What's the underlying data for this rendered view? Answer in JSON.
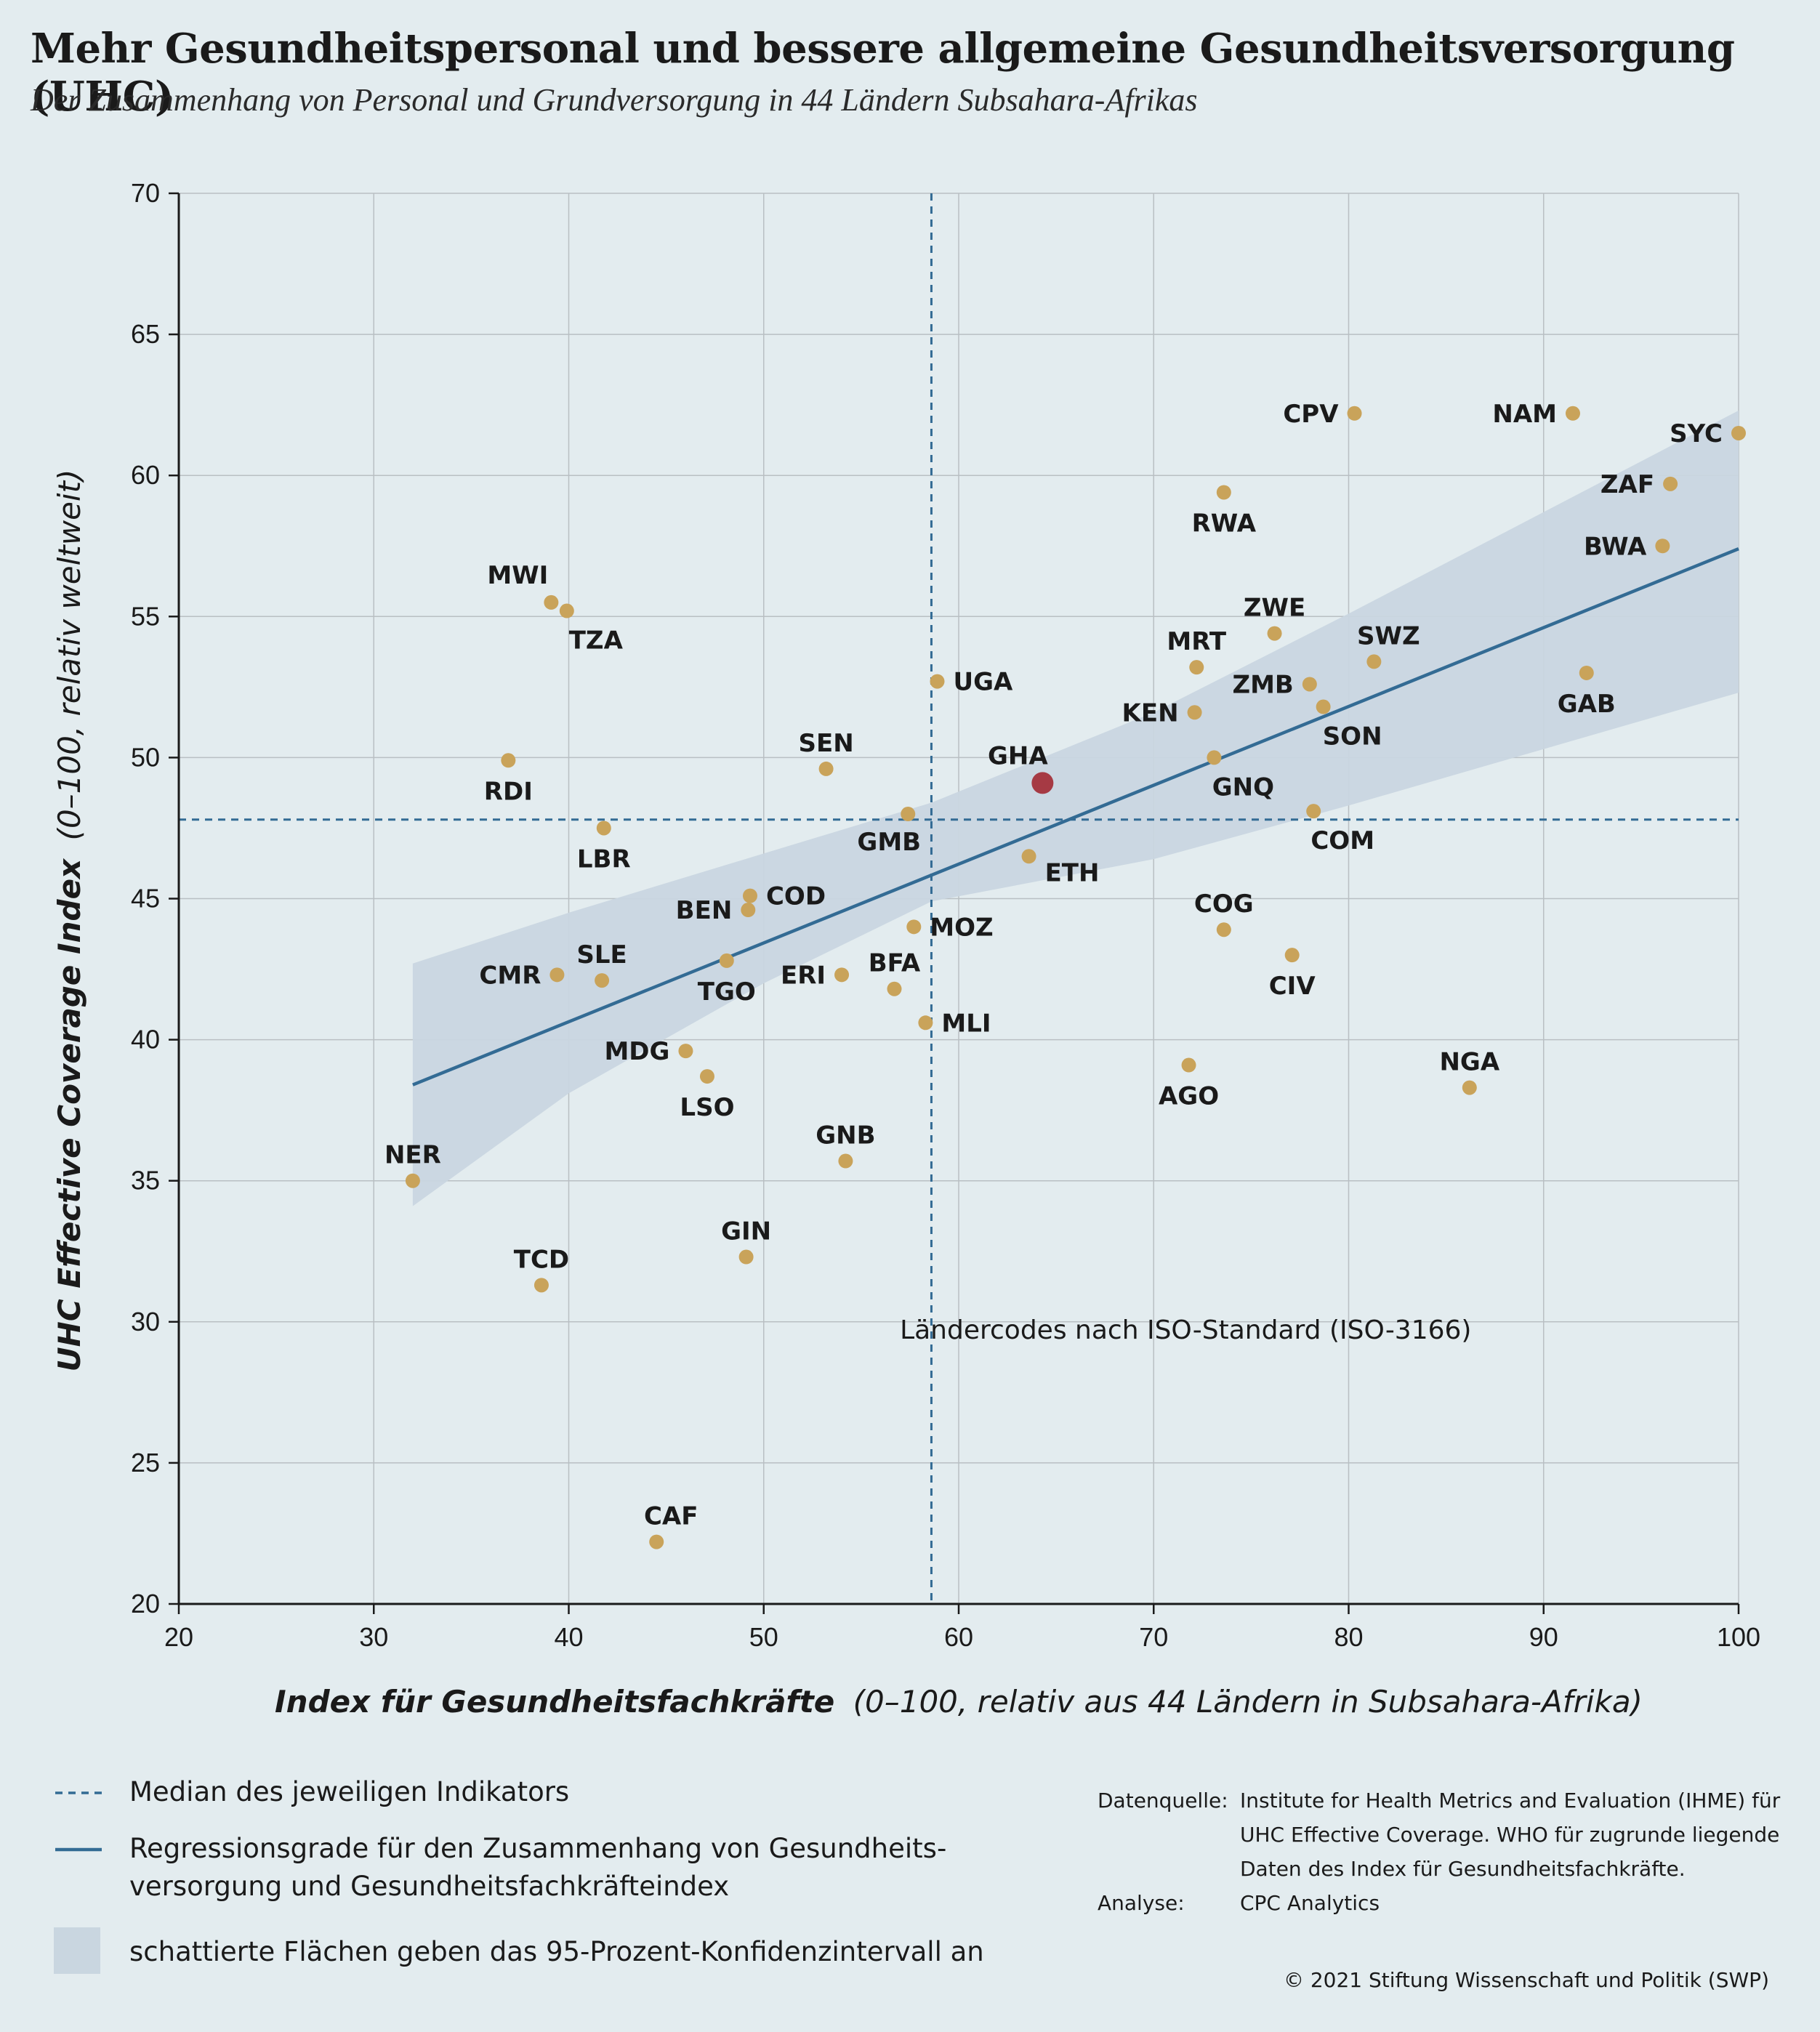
{
  "title": "Mehr Gesundheitspersonal und bessere allgemeine Gesundheitsversorgung (UHC)",
  "subtitle": "Der Zusammenhang von Personal und Grundversorgung in 44 Ländern Subsahara-Afrikas",
  "colors": {
    "background": "#e3ecef",
    "point": "#c9a35a",
    "highlight": "#a63a44",
    "regression": "#336b94",
    "confidence_band": "#c9d6e0",
    "median": "#336b94",
    "grid": "#b9bfc3"
  },
  "chart_data": {
    "type": "scatter",
    "xlabel_bold": "Index für Gesundheitsfachkräfte",
    "xlabel_rest": "(0–100, relativ aus 44 Ländern in Subsahara-Afrika)",
    "ylabel_bold": "UHC Effective Coverage Index",
    "ylabel_rest": "(0–100, relativ weltweit)",
    "xlim": [
      20,
      100
    ],
    "ylim": [
      20,
      70
    ],
    "xticks": [
      20,
      30,
      40,
      50,
      60,
      70,
      80,
      90,
      100
    ],
    "yticks": [
      20,
      25,
      30,
      35,
      40,
      45,
      50,
      55,
      60,
      65,
      70
    ],
    "grid": true,
    "median_x": 58.6,
    "median_y": 47.8,
    "regression": {
      "x": [
        32,
        100
      ],
      "y": [
        38.4,
        57.4
      ]
    },
    "confidence_band": {
      "upper": [
        [
          32,
          42.7
        ],
        [
          40,
          44.5
        ],
        [
          50,
          46.6
        ],
        [
          58.6,
          48.4
        ],
        [
          70,
          51.6
        ],
        [
          80,
          55.1
        ],
        [
          90,
          58.7
        ],
        [
          100,
          62.3
        ]
      ],
      "lower": [
        [
          32,
          34.1
        ],
        [
          40,
          38.1
        ],
        [
          50,
          42.0
        ],
        [
          58.6,
          44.9
        ],
        [
          70,
          46.4
        ],
        [
          80,
          48.3
        ],
        [
          90,
          50.3
        ],
        [
          100,
          52.3
        ]
      ]
    },
    "note": "Ländercodes nach ISO-Standard (ISO-3166)",
    "highlighted": "GHA",
    "points": [
      {
        "code": "SYC",
        "x": 100.0,
        "y": 61.5,
        "pos": "left"
      },
      {
        "code": "NAM",
        "x": 91.5,
        "y": 62.2,
        "pos": "left"
      },
      {
        "code": "CPV",
        "x": 80.3,
        "y": 62.2,
        "pos": "left"
      },
      {
        "code": "ZAF",
        "x": 96.5,
        "y": 59.7,
        "pos": "left"
      },
      {
        "code": "RWA",
        "x": 73.6,
        "y": 59.4,
        "pos": "below"
      },
      {
        "code": "BWA",
        "x": 96.1,
        "y": 57.5,
        "pos": "left"
      },
      {
        "code": "MWI",
        "x": 39.1,
        "y": 55.5,
        "pos": "left-above"
      },
      {
        "code": "TZA",
        "x": 39.9,
        "y": 55.2,
        "pos": "below-right"
      },
      {
        "code": "ZWE",
        "x": 76.2,
        "y": 54.4,
        "pos": "above"
      },
      {
        "code": "SWZ",
        "x": 81.3,
        "y": 53.4,
        "pos": "above-right"
      },
      {
        "code": "MRT",
        "x": 72.2,
        "y": 53.2,
        "pos": "above"
      },
      {
        "code": "GAB",
        "x": 92.2,
        "y": 53.0,
        "pos": "below"
      },
      {
        "code": "UGA",
        "x": 58.9,
        "y": 52.7,
        "pos": "right"
      },
      {
        "code": "ZMB",
        "x": 78.0,
        "y": 52.6,
        "pos": "left"
      },
      {
        "code": "SON",
        "x": 78.7,
        "y": 51.8,
        "pos": "below-right"
      },
      {
        "code": "KEN",
        "x": 72.1,
        "y": 51.6,
        "pos": "left"
      },
      {
        "code": "GNQ",
        "x": 73.1,
        "y": 50.0,
        "pos": "below-right"
      },
      {
        "code": "RDI",
        "x": 36.9,
        "y": 49.9,
        "pos": "below"
      },
      {
        "code": "SEN",
        "x": 53.2,
        "y": 49.6,
        "pos": "above"
      },
      {
        "code": "GHA",
        "x": 64.3,
        "y": 49.1,
        "pos": "above-left"
      },
      {
        "code": "COM",
        "x": 78.2,
        "y": 48.1,
        "pos": "below-right"
      },
      {
        "code": "GMB",
        "x": 57.4,
        "y": 48.0,
        "pos": "below-left"
      },
      {
        "code": "LBR",
        "x": 41.8,
        "y": 47.5,
        "pos": "below"
      },
      {
        "code": "ETH",
        "x": 63.6,
        "y": 46.5,
        "pos": "right-below"
      },
      {
        "code": "COD",
        "x": 49.3,
        "y": 45.1,
        "pos": "right"
      },
      {
        "code": "BEN",
        "x": 49.2,
        "y": 44.6,
        "pos": "left"
      },
      {
        "code": "MOZ",
        "x": 57.7,
        "y": 44.0,
        "pos": "right"
      },
      {
        "code": "COG",
        "x": 73.6,
        "y": 43.9,
        "pos": "above"
      },
      {
        "code": "CIV",
        "x": 77.1,
        "y": 43.0,
        "pos": "below"
      },
      {
        "code": "TGO",
        "x": 48.1,
        "y": 42.8,
        "pos": "below"
      },
      {
        "code": "CMR",
        "x": 39.4,
        "y": 42.3,
        "pos": "left"
      },
      {
        "code": "ERI",
        "x": 54.0,
        "y": 42.3,
        "pos": "left"
      },
      {
        "code": "SLE",
        "x": 41.7,
        "y": 42.1,
        "pos": "above"
      },
      {
        "code": "BFA",
        "x": 56.7,
        "y": 41.8,
        "pos": "above"
      },
      {
        "code": "MLI",
        "x": 58.3,
        "y": 40.6,
        "pos": "right"
      },
      {
        "code": "MDG",
        "x": 46.0,
        "y": 39.6,
        "pos": "left"
      },
      {
        "code": "AGO",
        "x": 71.8,
        "y": 39.1,
        "pos": "below"
      },
      {
        "code": "LSO",
        "x": 47.1,
        "y": 38.7,
        "pos": "below"
      },
      {
        "code": "NGA",
        "x": 86.2,
        "y": 38.3,
        "pos": "above"
      },
      {
        "code": "GNB",
        "x": 54.2,
        "y": 35.7,
        "pos": "above"
      },
      {
        "code": "NER",
        "x": 32.0,
        "y": 35.0,
        "pos": "above"
      },
      {
        "code": "GIN",
        "x": 49.1,
        "y": 32.3,
        "pos": "above"
      },
      {
        "code": "TCD",
        "x": 38.6,
        "y": 31.3,
        "pos": "above"
      },
      {
        "code": "CAF",
        "x": 44.5,
        "y": 22.2,
        "pos": "above-right"
      }
    ]
  },
  "legend": {
    "median": "Median des jeweiligen Indikators",
    "regression": "Regressionsgrade für den Zusammenhang von Gesundheits-versorgung und Gesundheitsfachkräfteindex",
    "band": "schattierte Flächen geben das 95-Prozent-Konfidenzintervall an"
  },
  "sources": {
    "data_key": "Datenquelle:",
    "data_val": "Institute for Health Metrics and Evaluation (IHME) für UHC Effective Coverage. WHO für zugrunde liegende Daten des Index für Gesundheitsfachkräfte.",
    "analysis_key": "Analyse:",
    "analysis_val": "CPC Analytics"
  },
  "copyright": "© 2021 Stiftung Wissenschaft und Politik (SWP)"
}
